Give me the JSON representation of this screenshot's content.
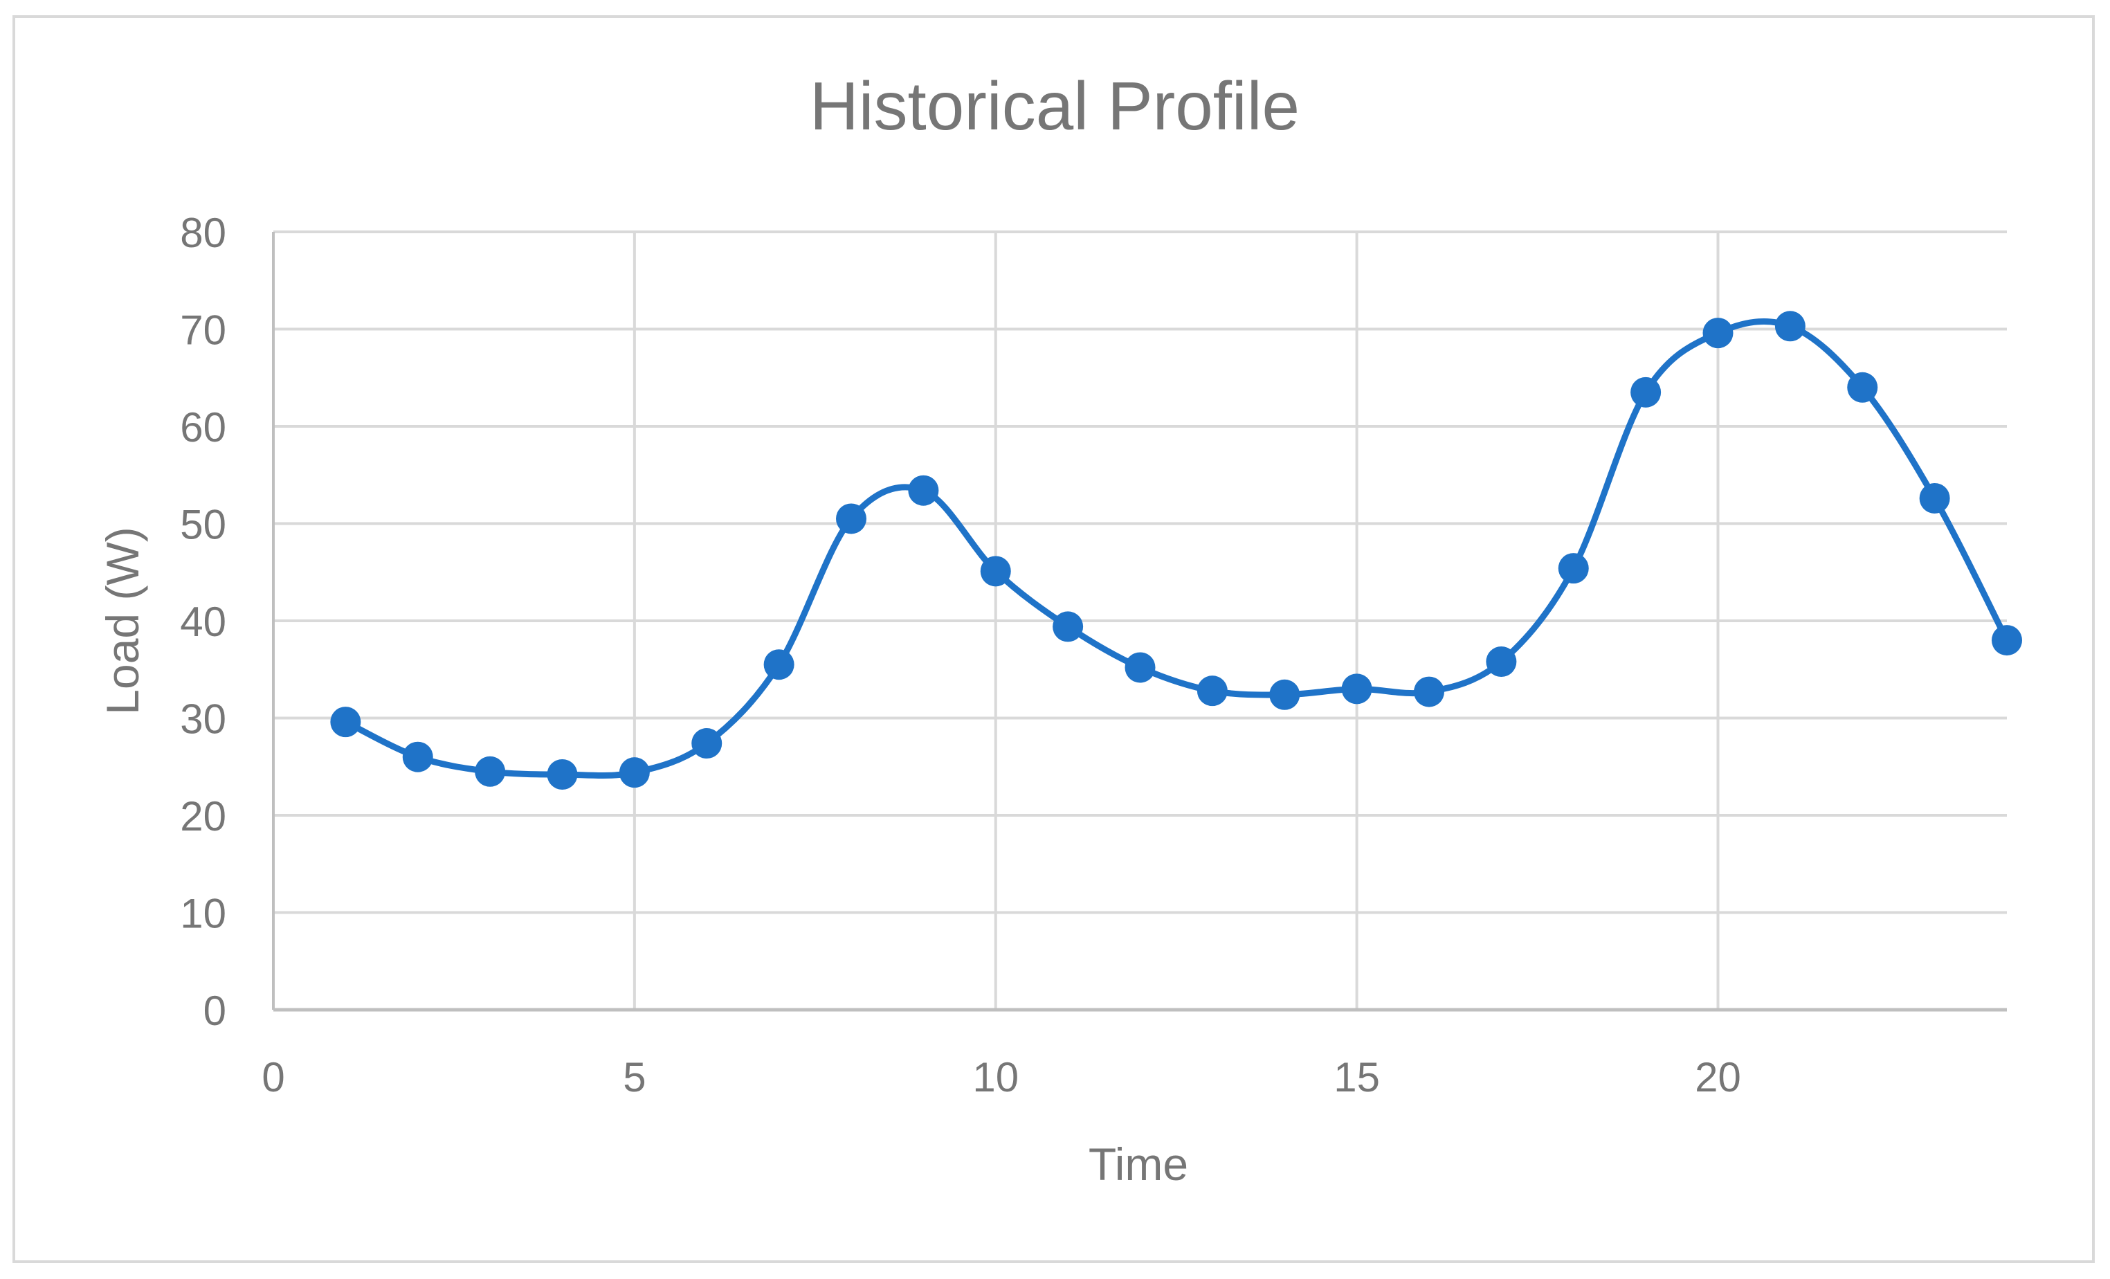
{
  "chart_data": {
    "type": "line",
    "title": "Historical Profile",
    "xlabel": "Time",
    "ylabel": "Load (W)",
    "xlim": [
      0,
      24
    ],
    "ylim": [
      0,
      80
    ],
    "x_ticks": [
      0,
      5,
      10,
      15,
      20
    ],
    "y_ticks": [
      0,
      10,
      20,
      30,
      40,
      50,
      60,
      70,
      80
    ],
    "grid": true,
    "legend": "none",
    "smooth": true,
    "colors": {
      "series": "#1f73c8",
      "grid": "#d9d9d9",
      "axis": "#bfbfbf",
      "text": "#767676",
      "frame": "#d9d9d9"
    },
    "series": [
      {
        "x": [
          1,
          2,
          3,
          4,
          5,
          6,
          7,
          8,
          9,
          10,
          11,
          12,
          13,
          14,
          15,
          16,
          17,
          18,
          19,
          20,
          21,
          22,
          23,
          24
        ],
        "y": [
          29.6,
          26.0,
          24.5,
          24.2,
          24.4,
          27.4,
          35.5,
          50.5,
          53.4,
          45.1,
          39.4,
          35.2,
          32.8,
          32.4,
          33.0,
          32.7,
          35.8,
          45.4,
          63.5,
          69.6,
          70.3,
          64.0,
          52.6,
          38.0
        ]
      }
    ]
  }
}
